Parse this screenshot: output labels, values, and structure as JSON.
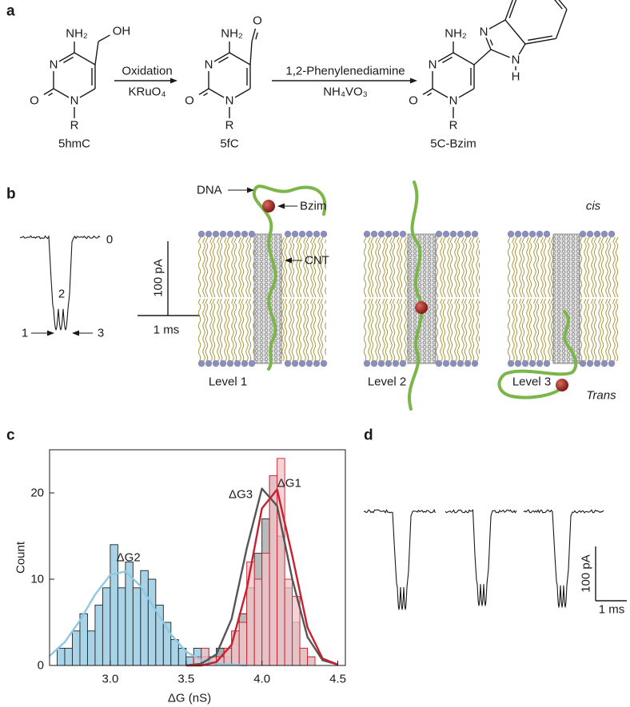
{
  "panel_labels": [
    "a",
    "b",
    "c",
    "d"
  ],
  "scheme": {
    "compounds": [
      {
        "name": "5hmC",
        "amine": "NH₂",
        "ring_n_top": "N",
        "ring_n_bottom": "N",
        "carbonyl": "O",
        "r_group": "R",
        "substituent": [
          "OH"
        ]
      },
      {
        "name": "5fC",
        "amine": "NH₂",
        "ring_n_top": "N",
        "ring_n_bottom": "N",
        "carbonyl": "O",
        "r_group": "R",
        "substituent": [
          "O"
        ]
      },
      {
        "name": "5C-Bzim",
        "amine": "NH₂",
        "ring_n_top": "N",
        "ring_n_bottom": "N",
        "carbonyl": "O",
        "r_group": "R",
        "substituent": [
          "N",
          "N",
          "H"
        ]
      }
    ],
    "steps": [
      {
        "above": "Oxidation",
        "below": "KRuO₄"
      },
      {
        "above": "1,2-Phenylenediamine",
        "below": "NH₄VO₃"
      }
    ]
  },
  "trace_b": {
    "level_labels": [
      "0",
      "2",
      "1",
      "3"
    ],
    "scale_current": "100 pA",
    "scale_time": "1 ms"
  },
  "model": {
    "dna": "DNA",
    "bzim": "Bzim",
    "cnt": "CNT",
    "cis": "cis",
    "trans": "Trans",
    "levels": [
      "Level 1",
      "Level 2",
      "Level 3"
    ]
  },
  "chart_data": {
    "type": "histogram",
    "xlabel": "ΔG (nS)",
    "ylabel": "Count",
    "xlim": [
      2.6,
      4.55
    ],
    "ylim": [
      0,
      25
    ],
    "xticks": [
      {
        "value": 3,
        "label": "3.0"
      },
      3.5,
      {
        "value": 4,
        "label": "4.0"
      },
      4.5
    ],
    "yticks": [
      0,
      10,
      20
    ],
    "bins": [
      2.65,
      2.7,
      2.75,
      2.8,
      2.85,
      2.9,
      2.95,
      3.0,
      3.05,
      3.1,
      3.15,
      3.2,
      3.25,
      3.3,
      3.35,
      3.4,
      3.45,
      3.5,
      3.55,
      3.6,
      3.65,
      3.7,
      3.75,
      3.8,
      3.85,
      3.9,
      3.95,
      4.0,
      4.05,
      4.1,
      4.15,
      4.2,
      4.25,
      4.3,
      4.35
    ],
    "series": [
      {
        "color": "#a9d3e6",
        "edgecolor": "#222222",
        "values": [
          2,
          2,
          4,
          6,
          4,
          7,
          9,
          14,
          9,
          12,
          9,
          11,
          10,
          7,
          5,
          3,
          2,
          1,
          2,
          2,
          1,
          2,
          1,
          0,
          0,
          0,
          0,
          0,
          0,
          0,
          0,
          0,
          0,
          0
        ]
      },
      {
        "color": "#a3a3a3",
        "edgecolor": "#222222",
        "values": [
          0,
          0,
          0,
          0,
          0,
          0,
          0,
          0,
          0,
          0,
          0,
          0,
          0,
          0,
          0,
          0,
          0,
          0,
          0,
          1,
          1,
          2,
          2,
          4,
          6,
          9,
          13,
          17,
          22,
          15,
          9,
          5,
          2,
          1
        ]
      },
      {
        "color": "#f2c4c8",
        "edgecolor": "#d0222e",
        "values": [
          0,
          0,
          0,
          0,
          0,
          0,
          0,
          0,
          0,
          0,
          0,
          0,
          0,
          0,
          0,
          0,
          0,
          0,
          1,
          2,
          1,
          1,
          2,
          4,
          5,
          12,
          10,
          13,
          22,
          24,
          10,
          8,
          2,
          1
        ]
      }
    ],
    "fits": [
      {
        "color": "#8ec8e3",
        "x": [
          2.6,
          2.7,
          2.8,
          2.9,
          3.0,
          3.1,
          3.2,
          3.3,
          3.4,
          3.5,
          3.6,
          3.7,
          3.8,
          3.9
        ],
        "values": [
          1.1,
          2.7,
          5.2,
          8.2,
          10.5,
          10.9,
          9.2,
          6.4,
          3.6,
          1.6,
          0.6,
          0.2,
          0.1,
          0
        ]
      },
      {
        "color": "#555555",
        "x": [
          3.5,
          3.6,
          3.7,
          3.8,
          3.9,
          4.0,
          4.1,
          4.2,
          4.3,
          4.4,
          4.5
        ],
        "values": [
          0,
          0.2,
          1.3,
          5.4,
          13.6,
          20.5,
          18.5,
          10,
          3.3,
          0.6,
          0.1
        ]
      },
      {
        "color": "#c8202f",
        "x": [
          3.5,
          3.6,
          3.7,
          3.8,
          3.9,
          4.0,
          4.1,
          4.2,
          4.3,
          4.4,
          4.5
        ],
        "values": [
          0,
          0,
          0.4,
          2.4,
          8.9,
          18.2,
          20.4,
          12.7,
          4.4,
          0.8,
          0.1
        ]
      }
    ],
    "annotations": [
      {
        "text": "ΔG2",
        "color": "#5aa9d6"
      },
      {
        "text": "ΔG3",
        "color": "#222222"
      },
      {
        "text": "ΔG1",
        "color": "#d0222e"
      }
    ]
  },
  "trace_d": {
    "scale_current": "100 pA",
    "scale_time": "1 ms"
  }
}
